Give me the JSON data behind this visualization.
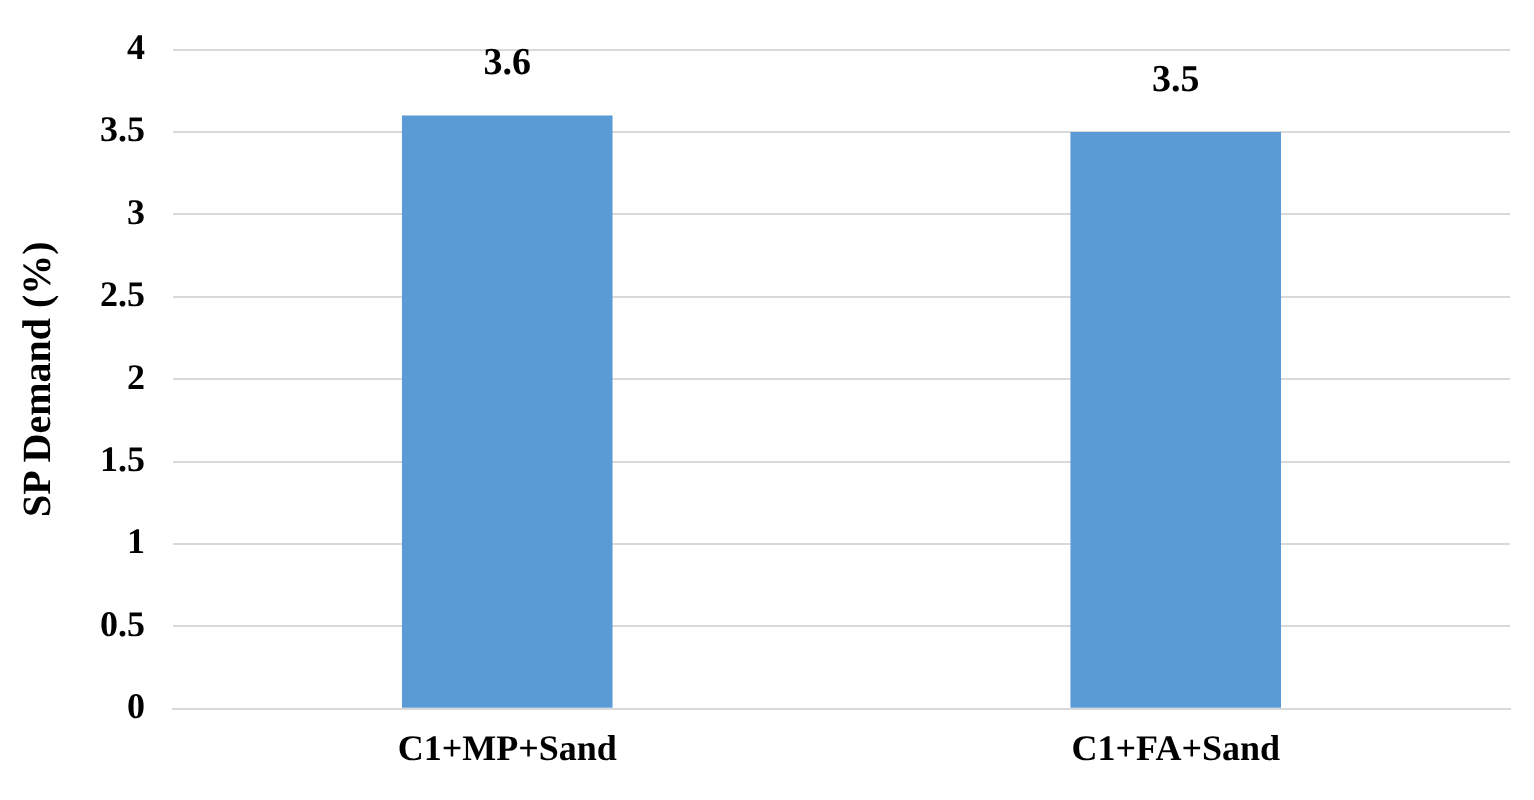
{
  "chart_data": {
    "type": "bar",
    "ylabel": "SP Demand (%)",
    "categories": [
      "C1+MP+Sand",
      "C1+FA+Sand"
    ],
    "values": [
      3.6,
      3.5
    ],
    "color": "#5b9bd5",
    "ylim": [
      0,
      4
    ],
    "yticks": [
      0,
      0.5,
      1,
      1.5,
      2,
      2.5,
      3,
      3.5,
      4
    ],
    "grid": "y",
    "data_labels": true,
    "legend": false
  }
}
